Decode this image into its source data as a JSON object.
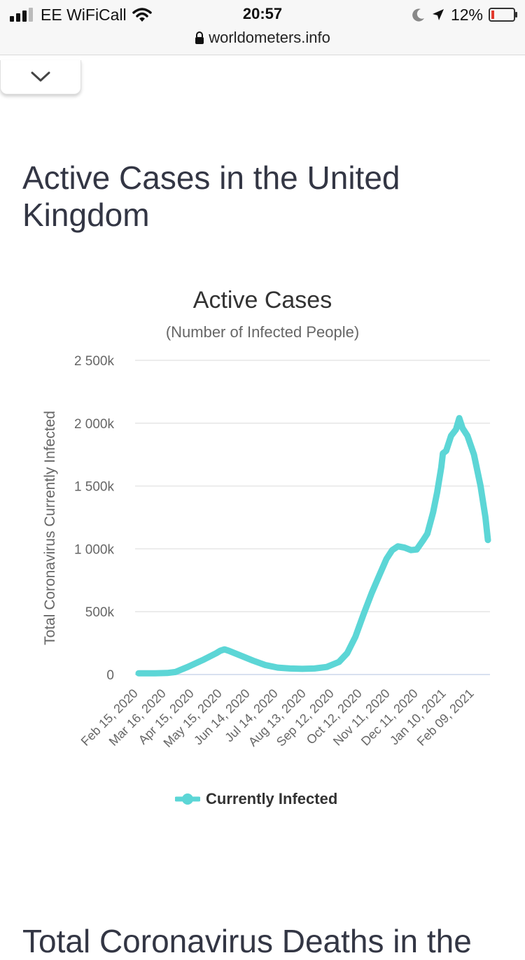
{
  "status_bar": {
    "carrier": "EE WiFiCall",
    "time": "20:57",
    "battery": "12%",
    "icons": [
      "signal-icon",
      "wifi-icon",
      "moon-icon",
      "location-icon",
      "battery-icon"
    ]
  },
  "browser": {
    "url": "worldometers.info",
    "lock_icon": "lock-icon"
  },
  "collapse_icon": "chevron-down-icon",
  "page": {
    "title": "Active Cases in the United Kingdom",
    "next_heading": "Total Coronavirus Deaths in the"
  },
  "colors": {
    "series": "#5cd6d6",
    "grid": "#e6e6e6",
    "title": "#333644"
  },
  "chart_data": {
    "type": "line",
    "title": "Active Cases",
    "subtitle": "(Number of Infected People)",
    "ylabel": "Total Coronavirus Currently Infected",
    "ylim": [
      0,
      2500000
    ],
    "y_ticks": [
      0,
      500000,
      1000000,
      1500000,
      2000000,
      2500000
    ],
    "y_tick_labels": [
      "0",
      "500k",
      "1 000k",
      "1 500k",
      "2 000k",
      "2 500k"
    ],
    "x_tick_labels": [
      "Feb 15, 2020",
      "Mar 16, 2020",
      "Apr 15, 2020",
      "May 15, 2020",
      "Jun 14, 2020",
      "Jul 14, 2020",
      "Aug 13, 2020",
      "Sep 12, 2020",
      "Oct 12, 2020",
      "Nov 11, 2020",
      "Dec 11, 2020",
      "Jan 10, 2021",
      "Feb 09, 2021"
    ],
    "x_start": "Feb 15, 2020",
    "x_end": "Feb 28, 2021",
    "series": [
      {
        "name": "Currently Infected",
        "points": [
          [
            0,
            10000
          ],
          [
            20,
            10000
          ],
          [
            35,
            12000
          ],
          [
            45,
            20000
          ],
          [
            60,
            60000
          ],
          [
            80,
            120000
          ],
          [
            95,
            170000
          ],
          [
            100,
            190000
          ],
          [
            105,
            200000
          ],
          [
            110,
            190000
          ],
          [
            125,
            150000
          ],
          [
            140,
            110000
          ],
          [
            155,
            75000
          ],
          [
            170,
            55000
          ],
          [
            185,
            48000
          ],
          [
            200,
            45000
          ],
          [
            215,
            48000
          ],
          [
            230,
            60000
          ],
          [
            245,
            100000
          ],
          [
            255,
            170000
          ],
          [
            265,
            300000
          ],
          [
            275,
            480000
          ],
          [
            285,
            650000
          ],
          [
            295,
            800000
          ],
          [
            303,
            920000
          ],
          [
            310,
            990000
          ],
          [
            317,
            1020000
          ],
          [
            325,
            1010000
          ],
          [
            333,
            990000
          ],
          [
            340,
            995000
          ],
          [
            348,
            1070000
          ],
          [
            353,
            1120000
          ],
          [
            360,
            1290000
          ],
          [
            365,
            1450000
          ],
          [
            370,
            1650000
          ],
          [
            372,
            1760000
          ],
          [
            376,
            1780000
          ],
          [
            382,
            1900000
          ],
          [
            388,
            1950000
          ],
          [
            392,
            2040000
          ],
          [
            396,
            1960000
          ],
          [
            402,
            1900000
          ],
          [
            410,
            1750000
          ],
          [
            418,
            1500000
          ],
          [
            424,
            1250000
          ],
          [
            427,
            1070000
          ]
        ]
      }
    ],
    "legend": "Currently Infected"
  }
}
